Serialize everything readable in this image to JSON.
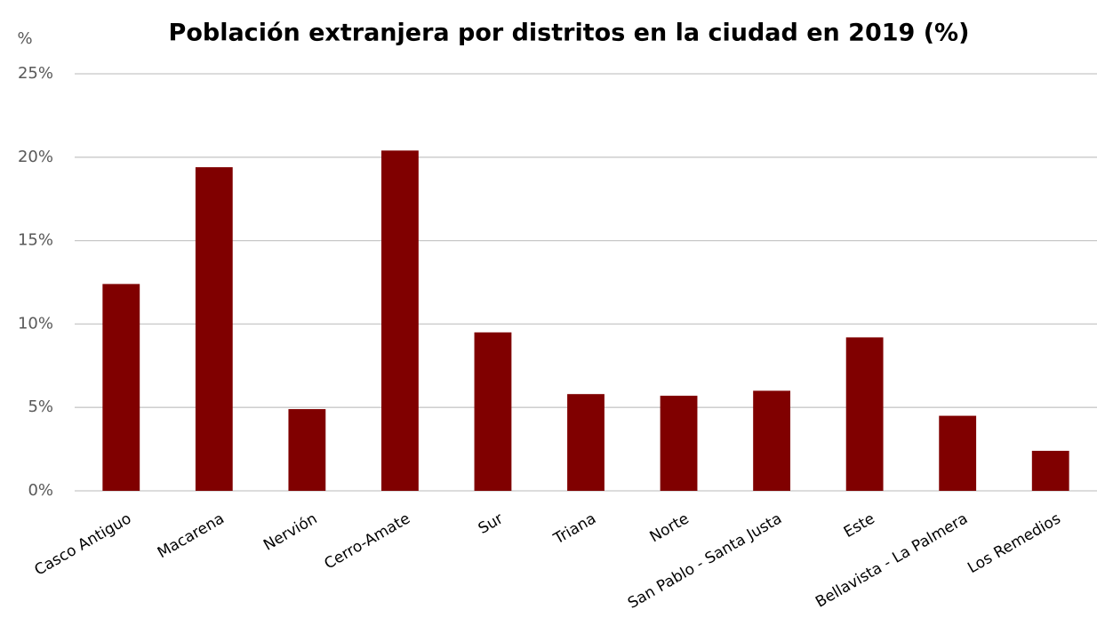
{
  "chart_data": {
    "type": "bar",
    "title": "Población extranjera por distritos en la ciudad en 2019 (%)",
    "y_label": "%",
    "categories": [
      "Casco Antiguo",
      "Macarena",
      "Nervión",
      "Cerro-Amate",
      "Sur",
      "Triana",
      "Norte",
      "San Pablo - Santa Justa",
      "Este",
      "Bellavista - La Palmera",
      "Los Remedios"
    ],
    "values": [
      12.4,
      19.4,
      4.9,
      20.4,
      9.5,
      5.8,
      5.7,
      6.0,
      9.2,
      4.5,
      2.4
    ],
    "color": "#800000",
    "ylim": [
      0,
      25
    ],
    "yticks": [
      {
        "value": 0,
        "label": "0%"
      },
      {
        "value": 5,
        "label": "5%"
      },
      {
        "value": 10,
        "label": "10%"
      },
      {
        "value": 15,
        "label": "15%"
      },
      {
        "value": 20,
        "label": "20%"
      },
      {
        "value": 25,
        "label": "25%"
      }
    ],
    "grid": true
  }
}
